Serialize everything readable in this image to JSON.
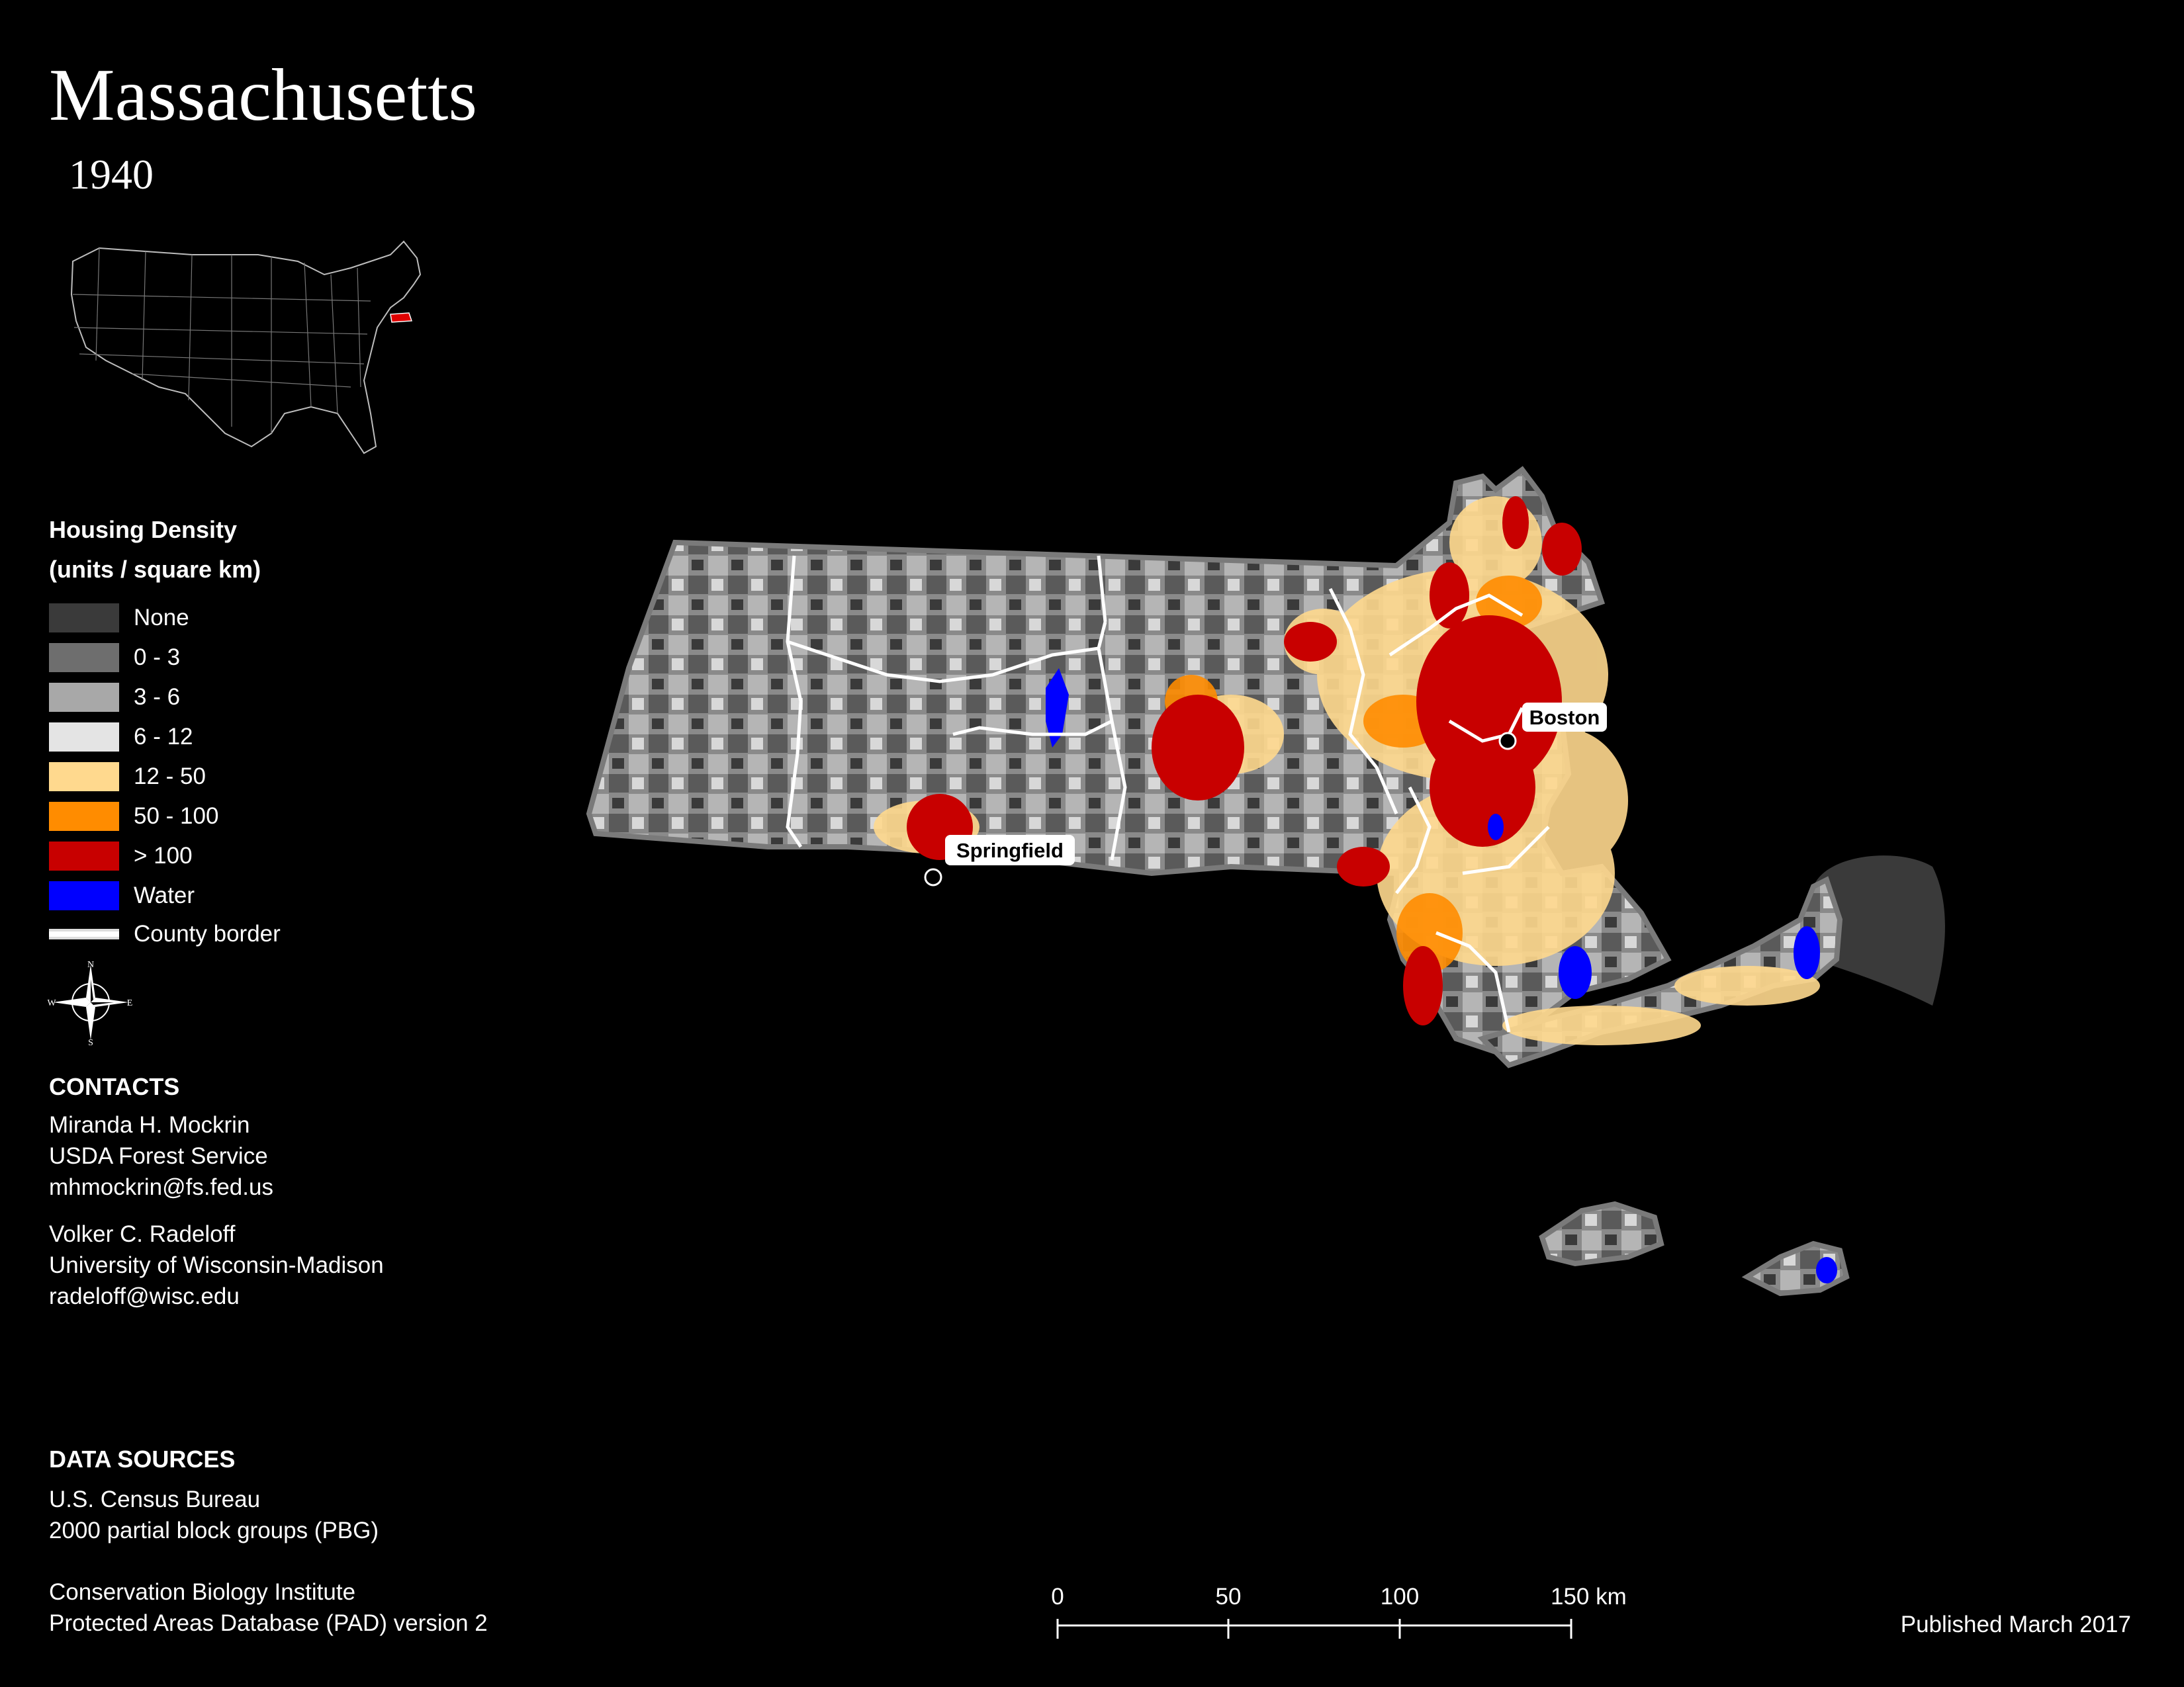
{
  "title": "Massachusetts",
  "subtitle": "1940",
  "legend": {
    "title_line1": "Housing Density",
    "title_line2": "(units / square km)",
    "items": [
      {
        "label": "None",
        "color": "#3a3a3a"
      },
      {
        "label": "0 - 3",
        "color": "#6e6e6e"
      },
      {
        "label": "3 - 6",
        "color": "#a8a8a8"
      },
      {
        "label": "6 - 12",
        "color": "#e4e4e4"
      },
      {
        "label": "12 - 50",
        "color": "#ffd98e"
      },
      {
        "label": "50 - 100",
        "color": "#ff8c00"
      },
      {
        "label": "> 100",
        "color": "#c80000"
      },
      {
        "label": "Water",
        "color": "#0000ff"
      }
    ],
    "county_border_label": "County border"
  },
  "compass": {
    "n": "N",
    "s": "S",
    "e": "E",
    "w": "W"
  },
  "contacts": {
    "header": "CONTACTS",
    "person1": {
      "name": "Miranda H. Mockrin",
      "org": "USDA Forest Service",
      "email": "mhmockrin@fs.fed.us"
    },
    "person2": {
      "name": "Volker C. Radeloff",
      "org": "University of Wisconsin-Madison",
      "email": "radeloff@wisc.edu"
    }
  },
  "data_sources": {
    "header": "DATA SOURCES",
    "source1_line1": "U.S. Census Bureau",
    "source1_line2": "2000 partial block groups (PBG)",
    "source2_line1": "Conservation Biology Institute",
    "source2_line2": "Protected Areas Database (PAD) version 2"
  },
  "cities": {
    "boston": "Boston",
    "springfield": "Springfield"
  },
  "scale": {
    "labels": [
      "0",
      "50",
      "100",
      "150 km"
    ]
  },
  "published": "Published March 2017"
}
